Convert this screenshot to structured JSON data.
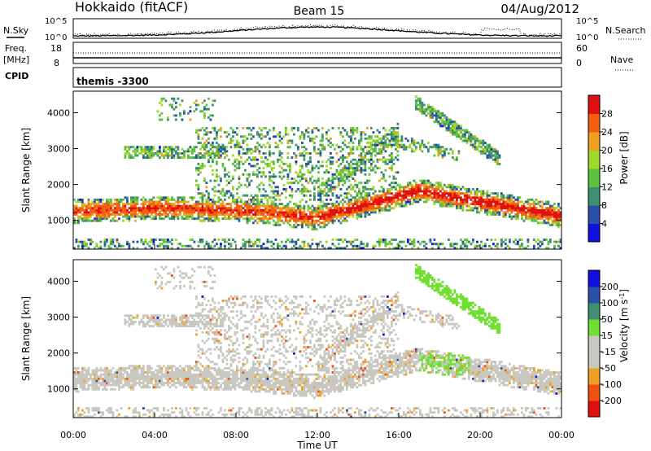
{
  "header": {
    "station": "Hokkaido (fitACF)",
    "beam": "Beam 15",
    "date": "04/Aug/2012"
  },
  "side_labels": {
    "nsky": "N.Sky",
    "nsearch": "N.Search",
    "freq_line1": "Freq.",
    "freq_line2": "[MHz]",
    "nave": "Nave",
    "cpid": "CPID",
    "cpid_value": "themis -3300"
  },
  "colors": {
    "power": [
      "#1010e0",
      "#2a4fa8",
      "#3d8f70",
      "#5cc040",
      "#a0d82a",
      "#f0a020",
      "#f06010",
      "#e01010"
    ],
    "velocity": [
      "#e01010",
      "#f05010",
      "#f0a020",
      "#c8c8c0",
      "#c8c8c0",
      "#70e030",
      "#3d8f70",
      "#2a4fa8",
      "#1010e0"
    ]
  },
  "chart_data": [
    {
      "type": "line",
      "name": "noise-panel",
      "ylabel_left": "N.Sky",
      "ylabel_right": "N.Search",
      "yticks_left": [
        "10^5",
        "10^0"
      ],
      "yticks_right": [
        "10^5",
        "10^0"
      ]
    },
    {
      "type": "line",
      "name": "freq-nave-panel",
      "ylabel_left": "[MHz]",
      "yticks_left": [
        "18",
        "8"
      ],
      "yticks_right": [
        "60",
        "0"
      ]
    },
    {
      "type": "heatmap",
      "name": "power-panel",
      "ylabel": "Slant Range [km]",
      "ylim": [
        200,
        4600
      ],
      "yticks": [
        "1000",
        "2000",
        "3000",
        "4000"
      ],
      "xlim_hours": [
        0,
        24
      ],
      "colorbar": {
        "label": "Power [dB]",
        "ticks": [
          "4",
          "8",
          "12",
          "16",
          "20",
          "24",
          "28"
        ],
        "range": [
          0,
          32
        ]
      }
    },
    {
      "type": "heatmap",
      "name": "velocity-panel",
      "ylabel": "Slant Range [km]",
      "ylim": [
        200,
        4600
      ],
      "yticks": [
        "1000",
        "2000",
        "3000",
        "4000"
      ],
      "xlim_hours": [
        0,
        24
      ],
      "xlabel": "Time UT",
      "xticks": [
        "00:00",
        "04:00",
        "08:00",
        "12:00",
        "16:00",
        "20:00",
        "00:00"
      ],
      "colorbar": {
        "label": "Velocity [m s",
        "label_sup": "-1",
        "label_close": "]",
        "ticks": [
          "200",
          "100",
          "50",
          "15",
          "-15",
          "-50",
          "-100",
          "-200"
        ]
      }
    }
  ]
}
